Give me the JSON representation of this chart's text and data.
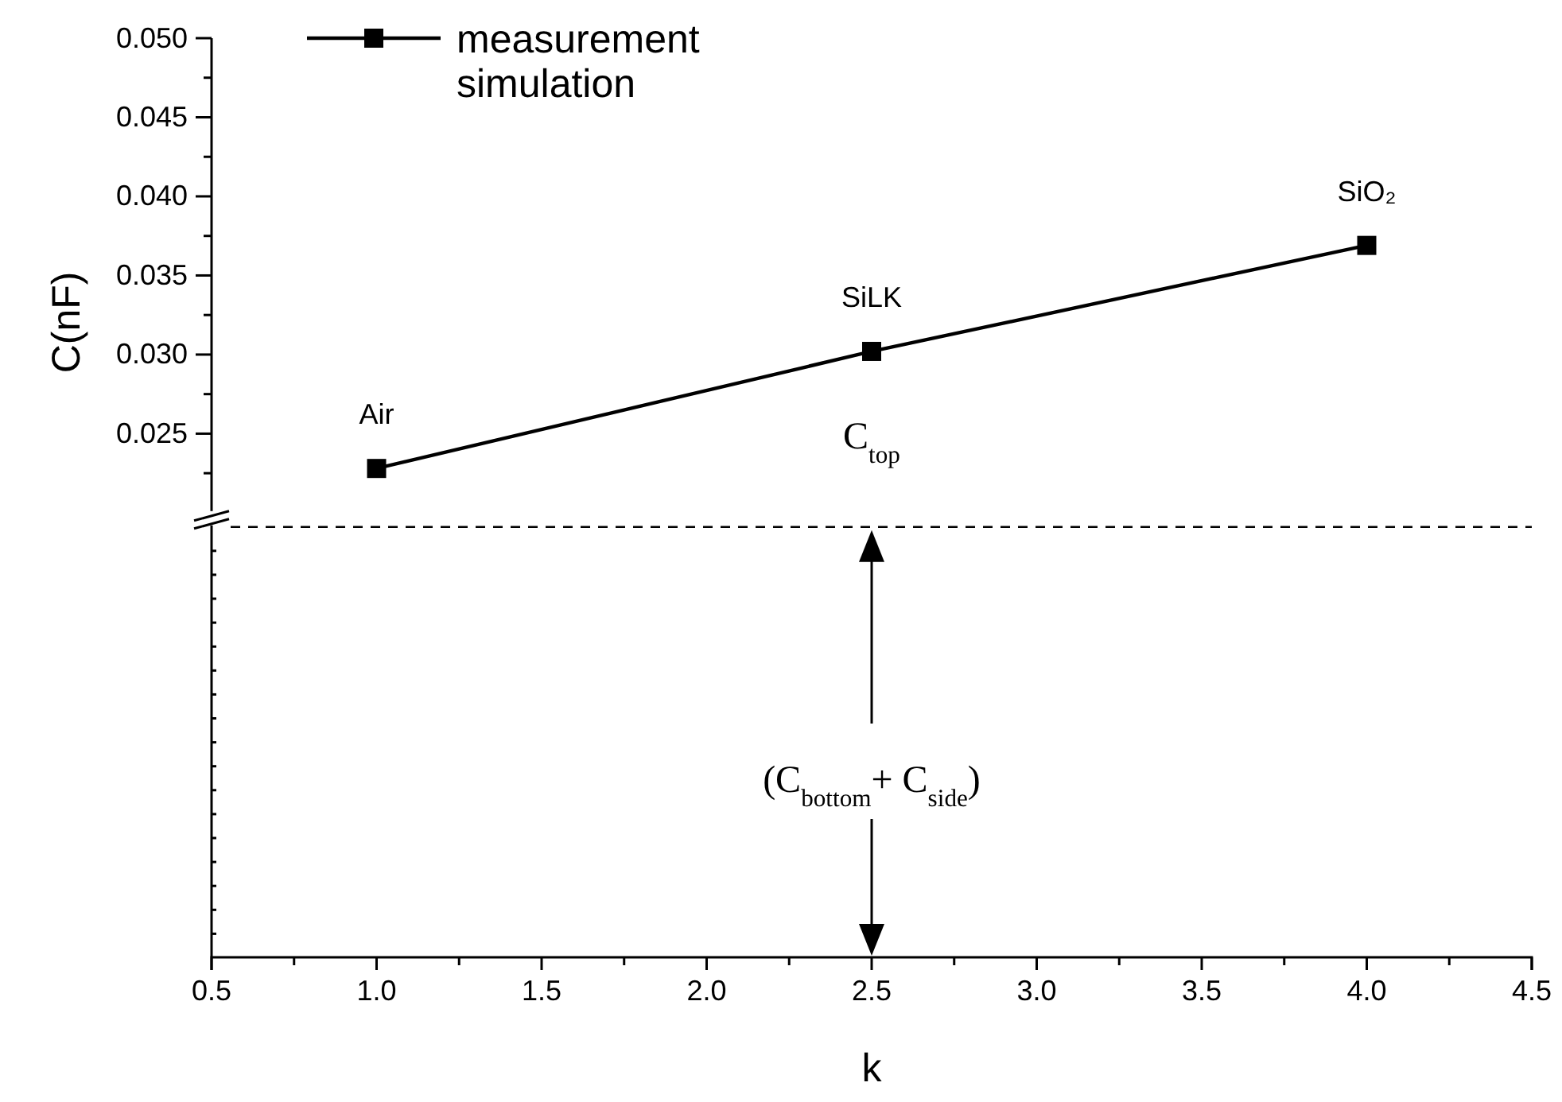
{
  "chart_data": {
    "type": "line",
    "xlabel": "k",
    "ylabel": "C(nF)",
    "x": [
      1.0,
      2.5,
      4.0
    ],
    "series": [
      {
        "name": "measurement",
        "color": "#000000",
        "values": [
          0.0228,
          0.0302,
          0.0369
        ]
      }
    ],
    "marker": "square",
    "line_style": "solid",
    "legend": "top left",
    "grid": false,
    "xlim": [
      0.5,
      4.5
    ],
    "xticks": [
      {
        "value": 0.5,
        "label": "0.5"
      },
      {
        "value": 1,
        "label": "1.0"
      },
      {
        "value": 1.5,
        "label": "1.5"
      },
      {
        "value": 2,
        "label": "2.0"
      },
      {
        "value": 2.5,
        "label": "2.5"
      },
      {
        "value": 3,
        "label": "3.0"
      },
      {
        "value": 3.5,
        "label": "3.5"
      },
      {
        "value": 4,
        "label": "4.0"
      },
      {
        "value": 4.5,
        "label": "4.5"
      }
    ],
    "ylim": [
      -0.0081,
      0.05
    ],
    "yticks": [
      {
        "value": 0.025,
        "label": "0.025"
      },
      {
        "value": 0.03,
        "label": "0.030"
      },
      {
        "value": 0.035,
        "label": "0.035"
      },
      {
        "value": 0.04,
        "label": "0.040"
      },
      {
        "value": 0.045,
        "label": "0.045"
      },
      {
        "value": 0.05,
        "label": "0.050"
      }
    ],
    "ref_lines": [
      {
        "axis": "y",
        "value": 0.0191,
        "line_style": "dashed",
        "color": "#000000"
      }
    ],
    "annotations": [
      {
        "text": "Air",
        "x": 1.0,
        "y": 0.0228
      },
      {
        "text": "SiLK",
        "x": 2.5,
        "y": 0.0302
      },
      {
        "text": "SiO₂",
        "x": 4.0,
        "y": 0.0369
      },
      "simulation",
      "C$_{top}$",
      "(C$_{bottom}$+ C$_{side}$)"
    ]
  }
}
